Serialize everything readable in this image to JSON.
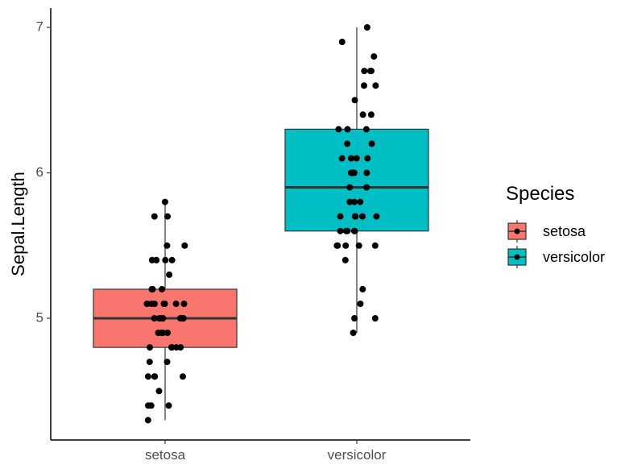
{
  "chart_data": {
    "type": "boxplot",
    "title": "",
    "xlabel": "",
    "ylabel": "Sepal.Length",
    "ylim": [
      4.2,
      7.1
    ],
    "yticks": [
      5,
      6,
      7
    ],
    "grid": false,
    "legend_position": "right",
    "legend_title": "Species",
    "categories": [
      "setosa",
      "versicolor"
    ],
    "series": [
      {
        "name": "setosa",
        "color": "#F8766D",
        "box": {
          "min": 4.3,
          "q1": 4.8,
          "median": 5.0,
          "q3": 5.2,
          "max": 5.8
        },
        "points": [
          5.1,
          4.9,
          4.7,
          4.6,
          5.0,
          5.4,
          4.6,
          5.0,
          4.4,
          4.9,
          5.4,
          4.8,
          4.8,
          4.3,
          5.8,
          5.7,
          5.4,
          5.1,
          5.7,
          5.1,
          5.4,
          5.1,
          4.6,
          5.1,
          4.8,
          5.0,
          5.0,
          5.2,
          5.2,
          4.7,
          4.8,
          5.4,
          5.2,
          5.5,
          4.9,
          5.0,
          5.5,
          4.9,
          4.4,
          5.1,
          5.0,
          4.5,
          4.4,
          5.0,
          5.1,
          4.8,
          5.1,
          4.6,
          5.3,
          5.0
        ]
      },
      {
        "name": "versicolor",
        "color": "#00BFC4",
        "box": {
          "min": 4.9,
          "q1": 5.6,
          "median": 5.9,
          "q3": 6.3,
          "max": 7.0
        },
        "points": [
          7.0,
          6.4,
          6.9,
          5.5,
          6.5,
          5.7,
          6.3,
          4.9,
          6.6,
          5.2,
          5.0,
          5.9,
          6.0,
          6.1,
          5.6,
          6.7,
          5.6,
          5.8,
          6.2,
          5.6,
          5.9,
          6.1,
          6.3,
          6.1,
          6.4,
          6.6,
          6.8,
          6.7,
          6.0,
          5.7,
          5.5,
          5.5,
          5.8,
          6.0,
          5.4,
          6.0,
          6.7,
          6.3,
          5.6,
          5.5,
          5.5,
          6.1,
          5.8,
          5.0,
          5.6,
          5.7,
          5.7,
          6.2,
          5.1,
          5.7
        ]
      }
    ]
  }
}
